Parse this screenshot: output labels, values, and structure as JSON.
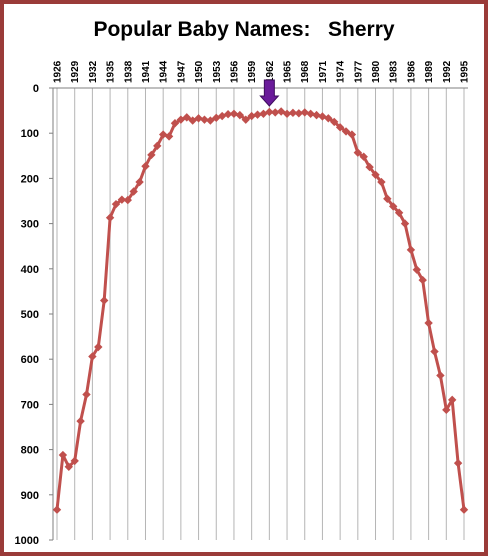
{
  "chart_data": {
    "type": "line",
    "title": "Popular Baby Names:   Sherry",
    "xlabel": "",
    "ylabel": "",
    "x_tick_labels": [
      "1926",
      "1929",
      "1932",
      "1935",
      "1938",
      "1941",
      "1944",
      "1947",
      "1950",
      "1953",
      "1956",
      "1959",
      "1962",
      "1965",
      "1968",
      "1971",
      "1974",
      "1977",
      "1980",
      "1983",
      "1986",
      "1989",
      "1992",
      "1995"
    ],
    "y_tick_labels": [
      "0",
      "100",
      "200",
      "300",
      "400",
      "500",
      "600",
      "700",
      "800",
      "900",
      "1000"
    ],
    "ylim": [
      0,
      1000
    ],
    "y_inverted": true,
    "grid": "vertical",
    "legend": "none",
    "series_color": "#c0504d",
    "marker": "diamond",
    "annotation": {
      "type": "arrow",
      "x": 1962,
      "color": "#6a1b9a"
    },
    "series": [
      {
        "x": [
          1926,
          1927,
          1928,
          1929,
          1930,
          1931,
          1932,
          1933,
          1934,
          1935,
          1936,
          1937,
          1938,
          1939,
          1940,
          1941,
          1942,
          1943,
          1944,
          1945,
          1946,
          1947,
          1948,
          1949,
          1950,
          1951,
          1952,
          1953,
          1954,
          1955,
          1956,
          1957,
          1958,
          1959,
          1960,
          1961,
          1962,
          1963,
          1964,
          1965,
          1966,
          1967,
          1968,
          1969,
          1970,
          1971,
          1972,
          1973,
          1974,
          1975,
          1976,
          1977,
          1978,
          1979,
          1980,
          1981,
          1982,
          1983,
          1984,
          1985,
          1986,
          1987,
          1988,
          1989,
          1990,
          1991,
          1992,
          1993,
          1994,
          1995
        ],
        "y": [
          933,
          812,
          838,
          825,
          737,
          678,
          594,
          573,
          470,
          287,
          257,
          247,
          248,
          229,
          208,
          173,
          148,
          128,
          103,
          107,
          78,
          70,
          65,
          72,
          67,
          70,
          72,
          66,
          62,
          58,
          57,
          60,
          70,
          62,
          59,
          57,
          53,
          54,
          52,
          57,
          55,
          56,
          54,
          57,
          60,
          63,
          67,
          75,
          87,
          96,
          103,
          143,
          152,
          175,
          192,
          208,
          245,
          262,
          276,
          300,
          358,
          402,
          425,
          520,
          583,
          636,
          712,
          690,
          830,
          933
        ]
      }
    ]
  }
}
